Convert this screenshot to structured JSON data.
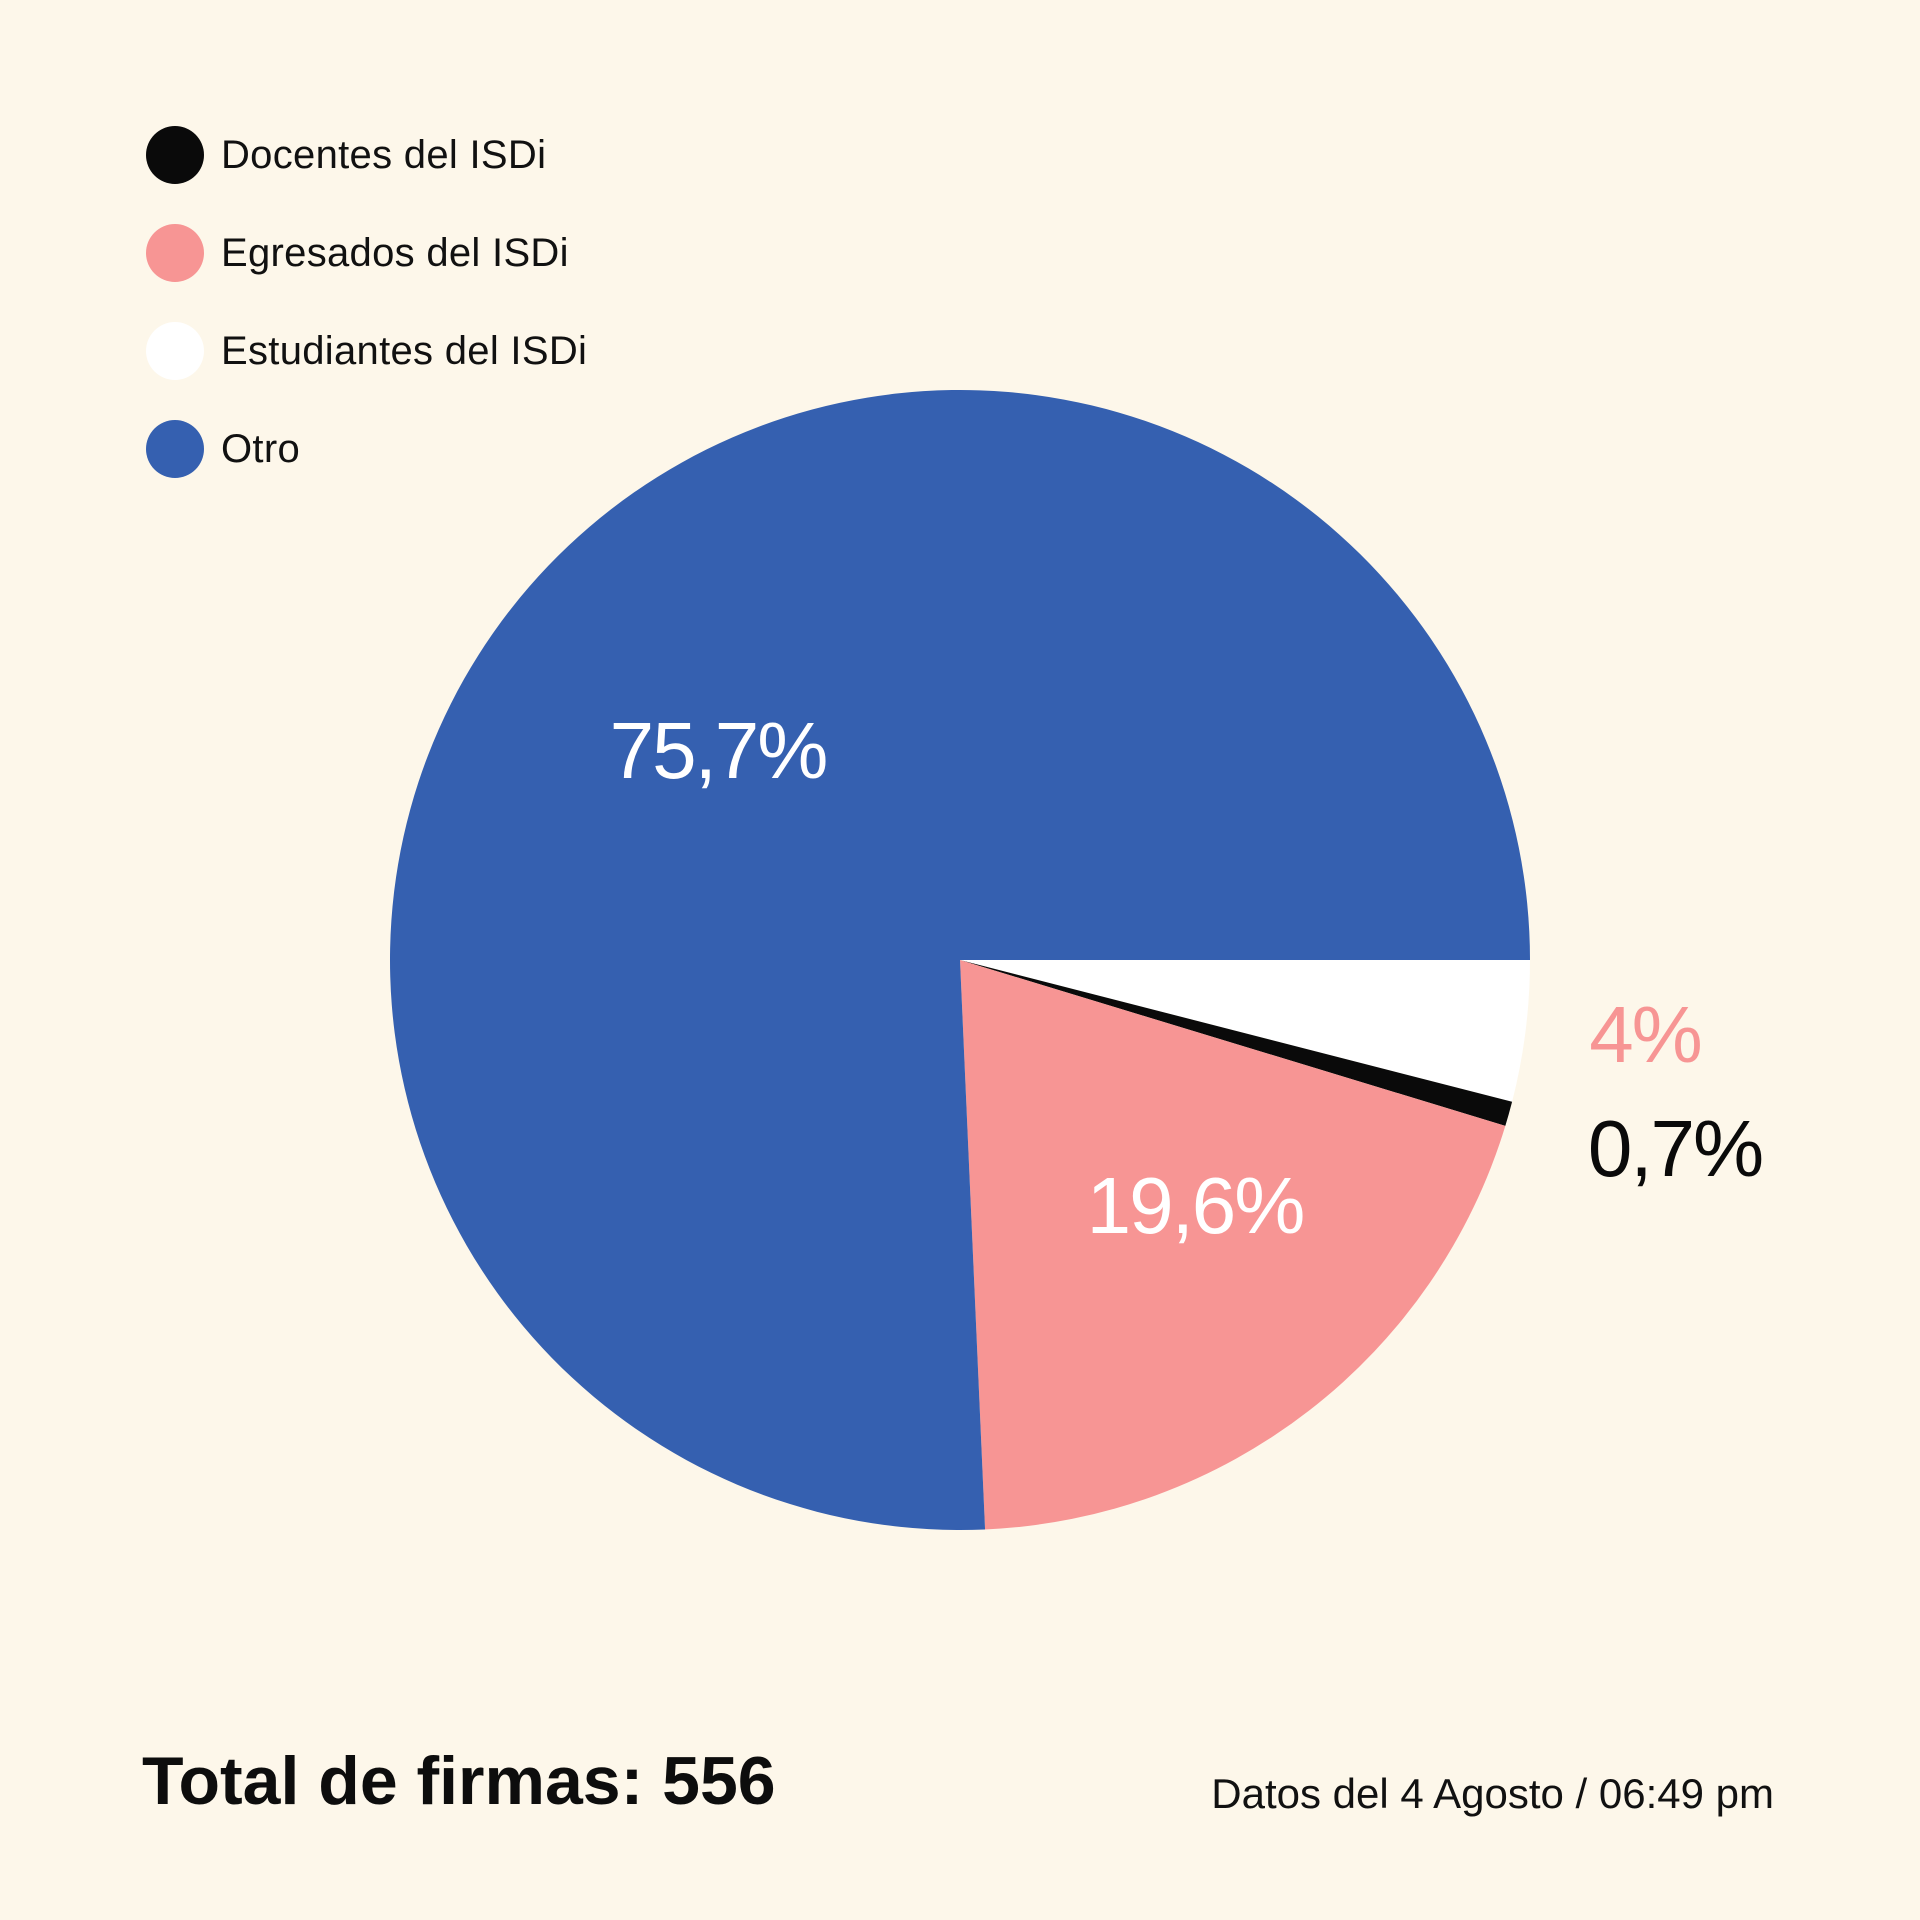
{
  "chart_data": {
    "type": "pie",
    "series": [
      {
        "name": "Docentes del ISDi",
        "value": 0.7,
        "label": "0,7%",
        "color": "#0a0a0a",
        "label_color": "#0a0a0a"
      },
      {
        "name": "Egresados del ISDi",
        "value": 19.6,
        "label": "19,6%",
        "color": "#f79594",
        "label_color": "#ffffff"
      },
      {
        "name": "Estudiantes del ISDi",
        "value": 4,
        "label": "4%",
        "color": "#ffffff",
        "label_color": "#f79594"
      },
      {
        "name": "Otro",
        "value": 75.7,
        "label": "75,7%",
        "color": "#3560b0",
        "label_color": "#ffffff"
      }
    ],
    "legend_position": "top-left",
    "unit": "%"
  },
  "footer": {
    "total": "Total de firmas: 556",
    "date": "Datos del 4 Agosto / 06:49 pm"
  }
}
